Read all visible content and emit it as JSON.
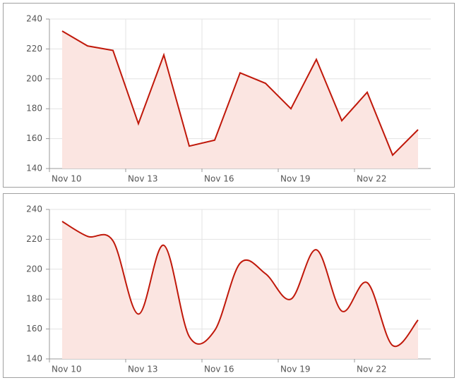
{
  "chart_data": [
    {
      "type": "area",
      "smooth": false,
      "color": "#c0180a",
      "fill": "#fbe5e1",
      "grid": true,
      "categories": [
        "Nov 10",
        null,
        null,
        "Nov 13",
        null,
        null,
        "Nov 16",
        null,
        null,
        "Nov 19",
        null,
        null,
        "Nov 22",
        null,
        null
      ],
      "values": [
        232,
        222,
        219,
        170,
        216,
        155,
        159,
        204,
        197,
        180,
        213,
        172,
        191,
        149,
        166
      ],
      "ylim": [
        140,
        240
      ],
      "yticks": [
        140,
        160,
        180,
        200,
        220,
        240
      ]
    },
    {
      "type": "area",
      "smooth": true,
      "color": "#c0180a",
      "fill": "#fbe5e1",
      "grid": true,
      "categories": [
        "Nov 10",
        null,
        null,
        "Nov 13",
        null,
        null,
        "Nov 16",
        null,
        null,
        "Nov 19",
        null,
        null,
        "Nov 22",
        null,
        null
      ],
      "values": [
        232,
        222,
        219,
        170,
        216,
        155,
        159,
        204,
        197,
        180,
        213,
        172,
        191,
        149,
        166
      ],
      "ylim": [
        140,
        240
      ],
      "yticks": [
        140,
        160,
        180,
        200,
        220,
        240
      ]
    }
  ]
}
